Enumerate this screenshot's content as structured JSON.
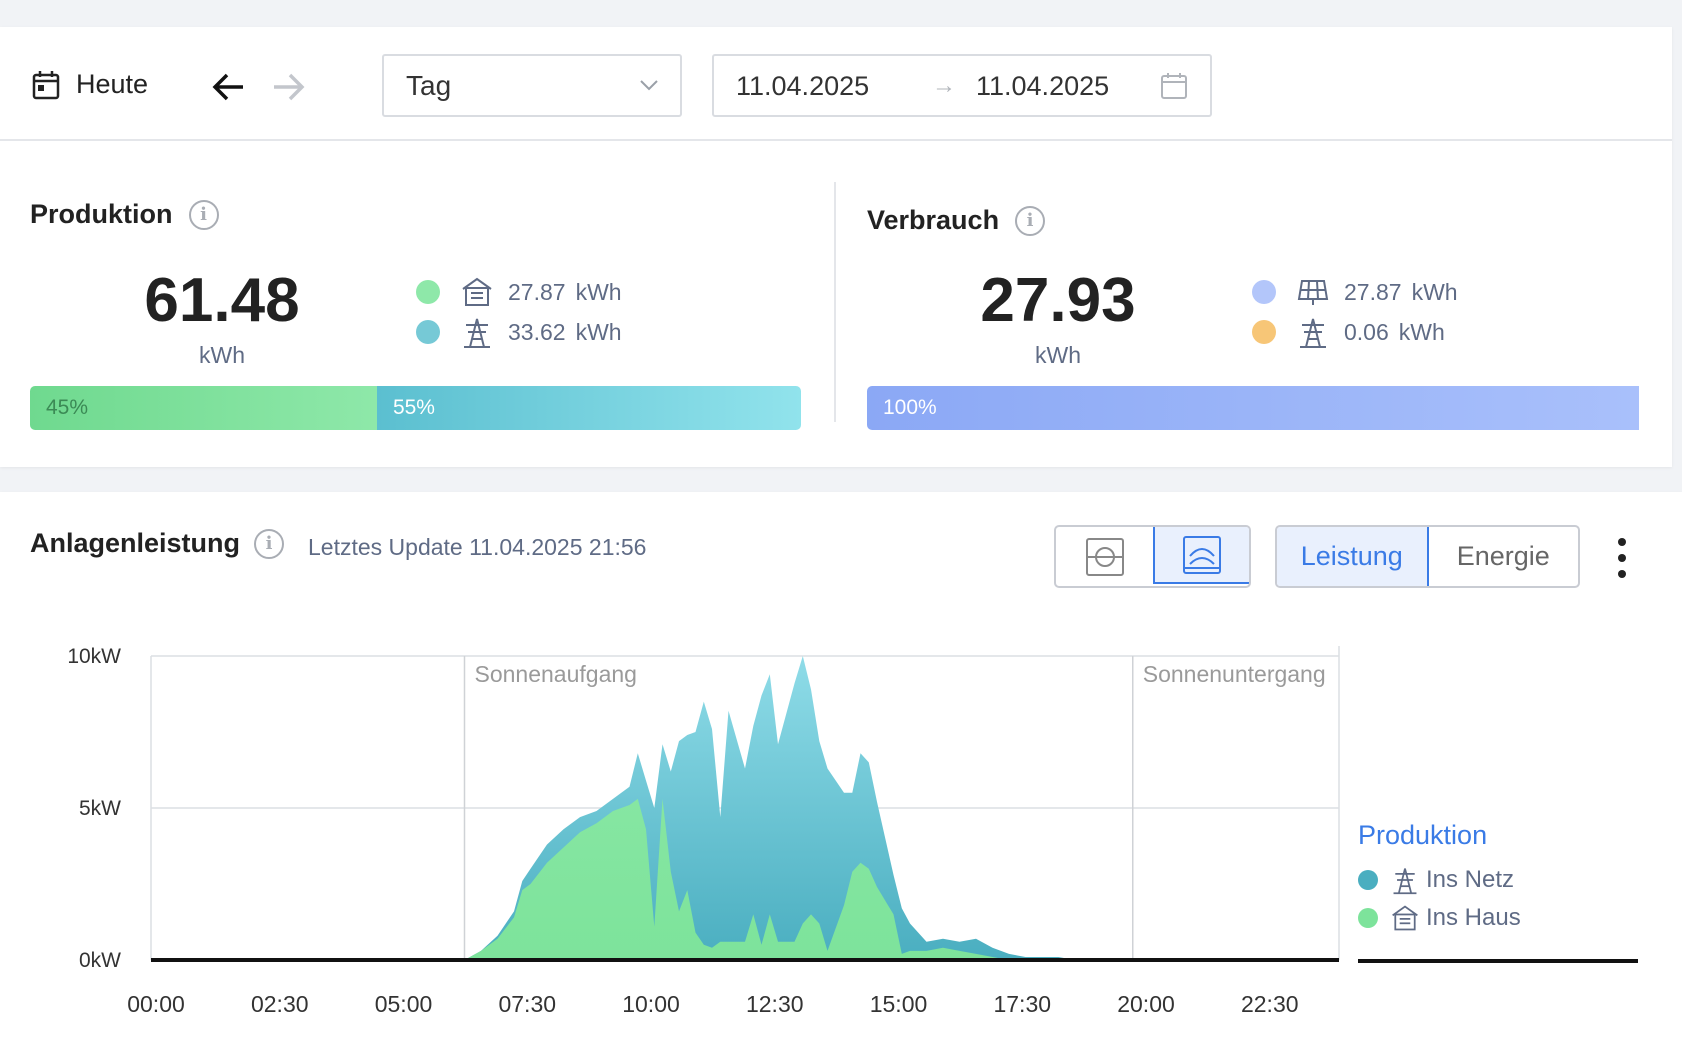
{
  "toolbar": {
    "today_label": "Heute",
    "period_select": "Tag",
    "date_start": "11.04.2025",
    "date_end": "11.04.2025"
  },
  "production": {
    "title": "Produktion",
    "value": "61.48",
    "unit": "kWh",
    "rows": [
      {
        "color": "#8ee8a9",
        "icon": "house-icon",
        "value": "27.87",
        "unit": "kWh"
      },
      {
        "color": "#76c9d6",
        "icon": "power-pylon-icon",
        "value": "33.62",
        "unit": "kWh"
      }
    ],
    "bar": [
      {
        "label": "45%",
        "fraction": 0.45
      },
      {
        "label": "55%",
        "fraction": 0.55
      }
    ]
  },
  "consumption": {
    "title": "Verbrauch",
    "value": "27.93",
    "unit": "kWh",
    "rows": [
      {
        "color": "#b3c6fa",
        "icon": "solar-panel-icon",
        "value": "27.87",
        "unit": "kWh"
      },
      {
        "color": "#f7c677",
        "icon": "power-pylon-icon",
        "value": "0.06",
        "unit": "kWh"
      }
    ],
    "bar": [
      {
        "label": "100%",
        "fraction": 1.0
      }
    ]
  },
  "chart_section": {
    "title": "Anlagenleistung",
    "last_update": "Letztes Update 11.04.2025 21:56",
    "view_buttons": [
      "single-view-icon",
      "stacked-view-icon"
    ],
    "mode_buttons": [
      "Leistung",
      "Energie"
    ],
    "active_mode": "Leistung"
  },
  "colors": {
    "netz": "#5bbfd0",
    "haus": "#7de39b",
    "accent": "#3a7be6"
  },
  "chart_data": {
    "type": "area",
    "stacked": true,
    "x_ticks": [
      "00:00",
      "02:30",
      "05:00",
      "07:30",
      "10:00",
      "12:30",
      "15:00",
      "17:30",
      "20:00",
      "22:30"
    ],
    "y_ticks": [
      "0kW",
      "5kW",
      "10kW"
    ],
    "ylim": [
      0,
      10
    ],
    "x_unit_hours": [
      0,
      24
    ],
    "annotations": [
      {
        "label": "Sonnenaufgang",
        "time": "06:20"
      },
      {
        "label": "Sonnenuntergang",
        "time": "19:50"
      }
    ],
    "x": [
      "06:20",
      "06:40",
      "07:00",
      "07:20",
      "07:30",
      "07:40",
      "08:00",
      "08:20",
      "08:40",
      "09:00",
      "09:20",
      "09:40",
      "09:50",
      "10:00",
      "10:10",
      "10:20",
      "10:30",
      "10:40",
      "10:50",
      "11:00",
      "11:10",
      "11:20",
      "11:30",
      "11:40",
      "12:00",
      "12:10",
      "12:20",
      "12:30",
      "12:40",
      "13:00",
      "13:10",
      "13:20",
      "13:30",
      "13:40",
      "14:00",
      "14:10",
      "14:20",
      "14:30",
      "14:40",
      "15:00",
      "15:10",
      "15:20",
      "15:40",
      "16:00",
      "16:20",
      "16:40",
      "17:00",
      "17:20",
      "17:40",
      "18:00",
      "18:20",
      "18:40",
      "19:00",
      "19:20",
      "19:50"
    ],
    "series": [
      {
        "name": "Ins Netz",
        "values": [
          0.0,
          0.0,
          0.1,
          0.2,
          0.3,
          0.5,
          0.6,
          0.6,
          0.5,
          0.4,
          0.4,
          0.6,
          1.5,
          1.6,
          3.9,
          1.8,
          3.3,
          5.6,
          5.1,
          6.6,
          8.0,
          7.2,
          4.1,
          7.6,
          5.7,
          6.2,
          8.2,
          7.9,
          6.5,
          8.5,
          8.8,
          7.4,
          6.0,
          6.0,
          3.7,
          2.6,
          3.6,
          3.5,
          2.8,
          1.3,
          1.5,
          0.9,
          0.3,
          0.3,
          0.3,
          0.5,
          0.3,
          0.2,
          0.1,
          0.1,
          0.1,
          0.0,
          0.0,
          0.0,
          0.0
        ]
      },
      {
        "name": "Ins Haus",
        "values": [
          0.0,
          0.3,
          0.7,
          1.4,
          2.3,
          2.5,
          3.2,
          3.7,
          4.2,
          4.5,
          4.9,
          5.1,
          5.3,
          4.3,
          1.1,
          5.3,
          2.9,
          1.6,
          2.3,
          0.9,
          0.5,
          0.4,
          0.6,
          0.6,
          0.6,
          1.5,
          0.5,
          1.5,
          0.6,
          0.6,
          1.2,
          1.5,
          1.2,
          0.3,
          1.8,
          2.9,
          3.2,
          3.0,
          2.4,
          1.5,
          0.2,
          0.3,
          0.3,
          0.4,
          0.3,
          0.2,
          0.1,
          0.0,
          0.0,
          0.0,
          0.0,
          0.0,
          0.0,
          0.0,
          0.0
        ]
      }
    ],
    "legend": {
      "title": "Produktion",
      "items": [
        "Ins Netz",
        "Ins Haus"
      ],
      "placement": "right"
    },
    "grid": true
  }
}
